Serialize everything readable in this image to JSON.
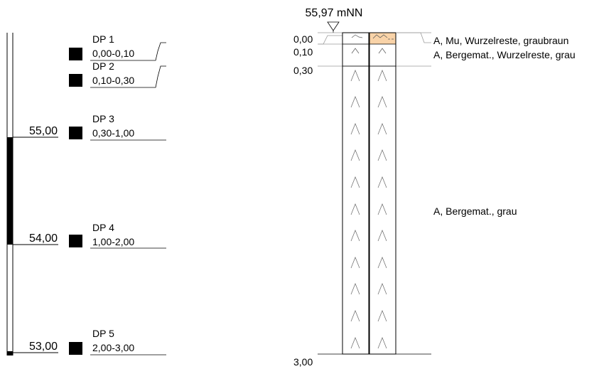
{
  "elevation_scale": {
    "ticks": [
      "55,00",
      "54,00",
      "53,00"
    ]
  },
  "samples": [
    {
      "id": "DP 1",
      "range": "0,00-0,10"
    },
    {
      "id": "DP 2",
      "range": "0,10-0,30"
    },
    {
      "id": "DP 3",
      "range": "0,30-1,00"
    },
    {
      "id": "DP 4",
      "range": "1,00-2,00"
    },
    {
      "id": "DP 5",
      "range": "2,00-3,00"
    }
  ],
  "profile": {
    "ground_level": "55,97 mNN",
    "depths": [
      "0,00",
      "0,10",
      "0,30",
      "3,00"
    ],
    "layers": [
      {
        "depth_from": 0.0,
        "depth_to": 0.1,
        "description": "A, Mu, Wurzelreste, graubraun",
        "color": "#F9D3A8"
      },
      {
        "depth_from": 0.1,
        "depth_to": 0.3,
        "description": "A, Bergemat., Wurzelreste, grau",
        "color": "#FFFFFF"
      },
      {
        "depth_from": 0.3,
        "depth_to": 3.0,
        "description": "A, Bergemat., grau",
        "color": "#FFFFFF"
      }
    ]
  },
  "colors": {
    "line": "#000000",
    "ground_line": "#9a9a9a",
    "topsoil": "#F9D3A8",
    "sample_marker": "#000000"
  }
}
